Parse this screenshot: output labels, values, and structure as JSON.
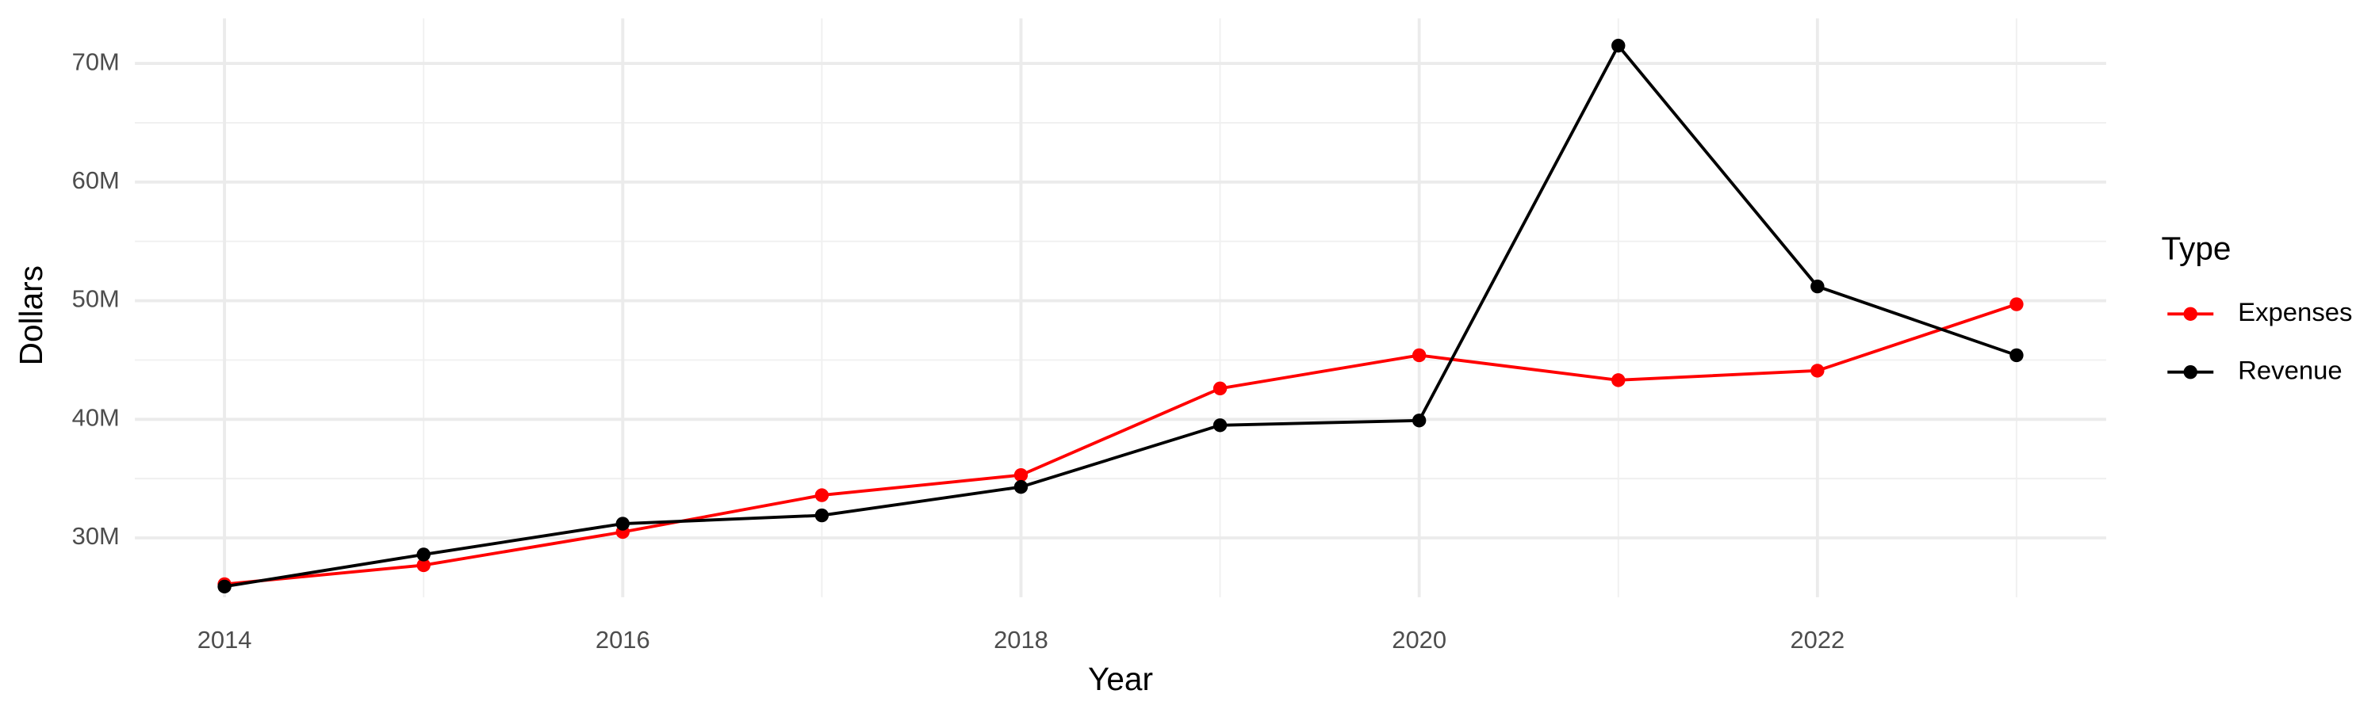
{
  "chart_data": {
    "type": "line",
    "x_label": "Year",
    "y_label": "Dollars",
    "x": [
      2014,
      2015,
      2016,
      2017,
      2018,
      2019,
      2020,
      2021,
      2022,
      2023
    ],
    "series": [
      {
        "name": "Expenses",
        "color": "#ff0000",
        "values": [
          26100000,
          27700000,
          30500000,
          33600000,
          35300000,
          42600000,
          45400000,
          43300000,
          44100000,
          49700000
        ]
      },
      {
        "name": "Revenue",
        "color": "#000000",
        "values": [
          25900000,
          28600000,
          31200000,
          31900000,
          34300000,
          39500000,
          39900000,
          71500000,
          51200000,
          45400000
        ]
      }
    ],
    "xlim": [
      2013.55,
      2023.45
    ],
    "xticks": [
      2014,
      2016,
      2018,
      2020,
      2022
    ],
    "ylim": [
      25000000,
      73800000
    ],
    "yticks": [
      {
        "value": 30000000,
        "label": "30M"
      },
      {
        "value": 40000000,
        "label": "40M"
      },
      {
        "value": 50000000,
        "label": "50M"
      },
      {
        "value": 60000000,
        "label": "60M"
      },
      {
        "value": 70000000,
        "label": "70M"
      }
    ],
    "grid": true,
    "legend_title": "Type",
    "legend_position": "right"
  }
}
